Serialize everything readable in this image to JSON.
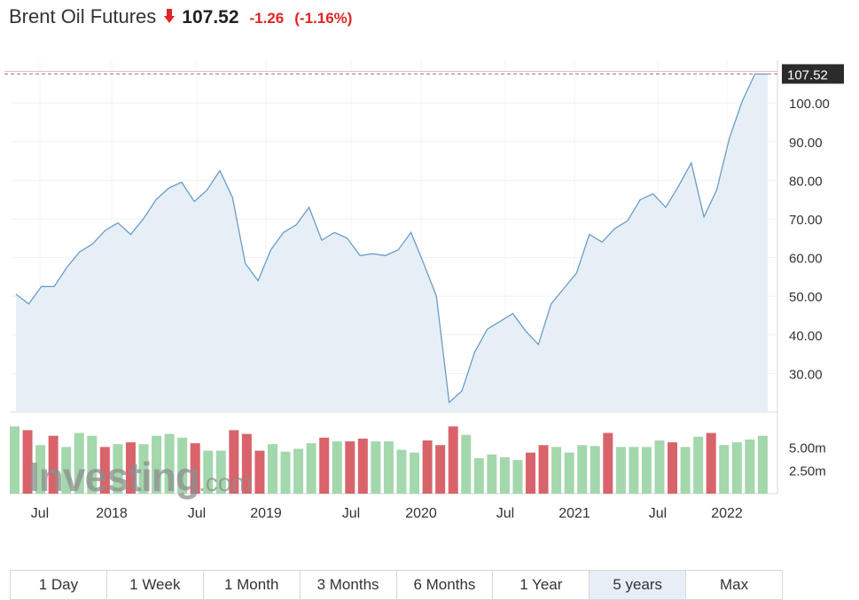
{
  "header": {
    "title": "Brent Oil Futures",
    "direction_icon": "down-arrow-icon",
    "price": "107.52",
    "change": "-1.26",
    "change_pct": "(-1.16%)",
    "down_color": "#e02424"
  },
  "watermark": {
    "brand": "Investing",
    "suffix": ".com"
  },
  "range_buttons": [
    {
      "label": "1 Day",
      "active": false
    },
    {
      "label": "1 Week",
      "active": false
    },
    {
      "label": "1 Month",
      "active": false
    },
    {
      "label": "3 Months",
      "active": false
    },
    {
      "label": "6 Months",
      "active": false
    },
    {
      "label": "1 Year",
      "active": false
    },
    {
      "label": "5 years",
      "active": true
    },
    {
      "label": "Max",
      "active": false
    }
  ],
  "chart_data": {
    "type": "area",
    "title": "Brent Oil Futures",
    "price_axis": {
      "ticks": [
        "30.00",
        "40.00",
        "50.00",
        "60.00",
        "70.00",
        "80.00",
        "90.00",
        "100.00"
      ],
      "range": [
        20,
        109
      ]
    },
    "current_price_label": "107.52",
    "x_labels": [
      "Jul",
      "2018",
      "Jul",
      "2019",
      "Jul",
      "2020",
      "Jul",
      "2021",
      "Jul",
      "2022"
    ],
    "series": [
      {
        "values": [
          50.5,
          48,
          52.5,
          52.5,
          57.5,
          61.5,
          63.5,
          67,
          69,
          66,
          70,
          75,
          78,
          79.5,
          74.5,
          77.5,
          82.5,
          75.5,
          58.5,
          54,
          62,
          66.5,
          68.5,
          73,
          64.5,
          66.5,
          65,
          60.5,
          61,
          60.5,
          62,
          66.5,
          58.5,
          50,
          22.5,
          25.5,
          35.5,
          41.5,
          43.5,
          45.5,
          41,
          37.5,
          48,
          52,
          56,
          66,
          64,
          67.5,
          69.5,
          75,
          76.5,
          73,
          78.5,
          84.5,
          70.5,
          77.5,
          91,
          100.5,
          107.5,
          107.5
        ]
      }
    ],
    "volume": {
      "axis_ticks": [
        "5.00m",
        "2.50m"
      ],
      "range": [
        0,
        7.5
      ],
      "colors": {
        "up": "#a3d7ac",
        "down": "#d9636a"
      },
      "bars": [
        {
          "v": 7.2,
          "dir": "up"
        },
        {
          "v": 6.8,
          "dir": "down"
        },
        {
          "v": 5.2,
          "dir": "up"
        },
        {
          "v": 6.2,
          "dir": "down"
        },
        {
          "v": 5.0,
          "dir": "up"
        },
        {
          "v": 6.5,
          "dir": "up"
        },
        {
          "v": 6.2,
          "dir": "up"
        },
        {
          "v": 5.0,
          "dir": "down"
        },
        {
          "v": 5.3,
          "dir": "up"
        },
        {
          "v": 5.5,
          "dir": "down"
        },
        {
          "v": 5.3,
          "dir": "up"
        },
        {
          "v": 6.2,
          "dir": "up"
        },
        {
          "v": 6.4,
          "dir": "up"
        },
        {
          "v": 6.0,
          "dir": "up"
        },
        {
          "v": 5.4,
          "dir": "down"
        },
        {
          "v": 4.6,
          "dir": "up"
        },
        {
          "v": 4.6,
          "dir": "up"
        },
        {
          "v": 6.8,
          "dir": "down"
        },
        {
          "v": 6.4,
          "dir": "down"
        },
        {
          "v": 4.6,
          "dir": "down"
        },
        {
          "v": 5.3,
          "dir": "up"
        },
        {
          "v": 4.5,
          "dir": "up"
        },
        {
          "v": 4.8,
          "dir": "up"
        },
        {
          "v": 5.4,
          "dir": "up"
        },
        {
          "v": 6.0,
          "dir": "down"
        },
        {
          "v": 5.6,
          "dir": "up"
        },
        {
          "v": 5.6,
          "dir": "down"
        },
        {
          "v": 5.9,
          "dir": "down"
        },
        {
          "v": 5.6,
          "dir": "up"
        },
        {
          "v": 5.6,
          "dir": "up"
        },
        {
          "v": 4.7,
          "dir": "up"
        },
        {
          "v": 4.4,
          "dir": "up"
        },
        {
          "v": 5.7,
          "dir": "down"
        },
        {
          "v": 5.2,
          "dir": "down"
        },
        {
          "v": 7.2,
          "dir": "down"
        },
        {
          "v": 6.3,
          "dir": "up"
        },
        {
          "v": 3.8,
          "dir": "up"
        },
        {
          "v": 4.2,
          "dir": "up"
        },
        {
          "v": 3.9,
          "dir": "up"
        },
        {
          "v": 3.6,
          "dir": "up"
        },
        {
          "v": 4.4,
          "dir": "down"
        },
        {
          "v": 5.2,
          "dir": "down"
        },
        {
          "v": 5.0,
          "dir": "up"
        },
        {
          "v": 4.4,
          "dir": "up"
        },
        {
          "v": 5.2,
          "dir": "up"
        },
        {
          "v": 5.1,
          "dir": "up"
        },
        {
          "v": 6.5,
          "dir": "down"
        },
        {
          "v": 5.0,
          "dir": "up"
        },
        {
          "v": 5.0,
          "dir": "up"
        },
        {
          "v": 5.0,
          "dir": "up"
        },
        {
          "v": 5.7,
          "dir": "up"
        },
        {
          "v": 5.5,
          "dir": "down"
        },
        {
          "v": 5.0,
          "dir": "up"
        },
        {
          "v": 6.1,
          "dir": "up"
        },
        {
          "v": 6.5,
          "dir": "down"
        },
        {
          "v": 5.2,
          "dir": "up"
        },
        {
          "v": 5.5,
          "dir": "up"
        },
        {
          "v": 5.8,
          "dir": "up"
        },
        {
          "v": 6.2,
          "dir": "up"
        }
      ]
    },
    "colors": {
      "line": "#6a9cc8",
      "fill": "#e7eff6",
      "last_price_bg": "#2b2b2b"
    },
    "grid": true
  }
}
